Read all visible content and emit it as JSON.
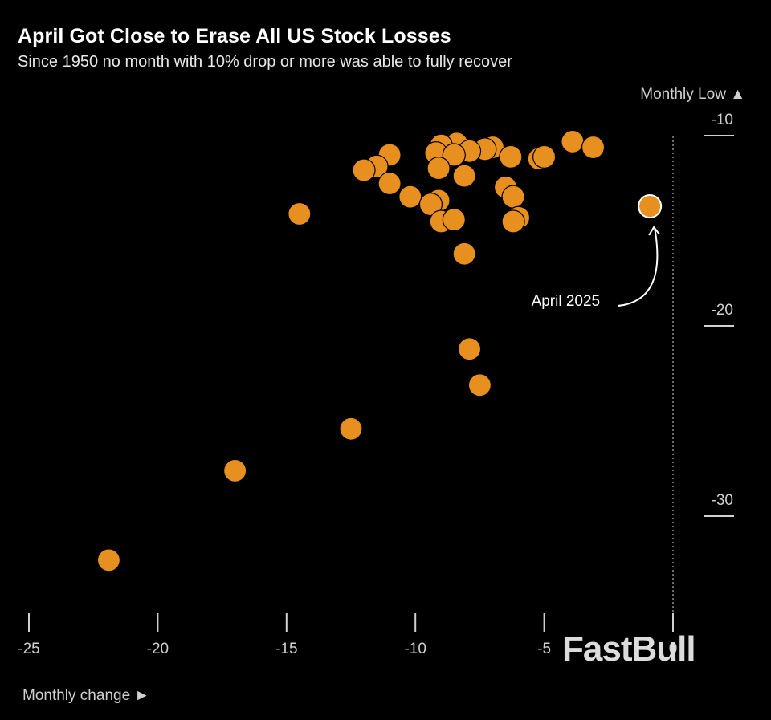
{
  "title": "April Got Close to Erase All US Stock Losses",
  "subtitle": "Since 1950 no month with 10% drop or more was able to fully recover",
  "watermark": "FastBull",
  "colors": {
    "background": "#000000",
    "dot": "#E8901F",
    "highlight_stroke": "#FFFFFF",
    "text": "#FFFFFF"
  },
  "chart_data": {
    "type": "scatter",
    "title": "April Got Close to Erase All US Stock Losses",
    "subtitle": "Since 1950 no month with 10% drop or more was able to fully recover",
    "xlabel": "Monthly change ►",
    "ylabel": "Monthly Low ▲",
    "xlim": [
      -25,
      0
    ],
    "ylim": [
      -33,
      -10
    ],
    "xticks": [
      -25,
      -20,
      -15,
      -10,
      -5,
      0
    ],
    "xtick_labels": [
      "-25",
      "-20",
      "-15",
      "-10",
      "-5",
      "0"
    ],
    "yticks": [
      -10,
      -20,
      -30
    ],
    "ytick_labels": [
      "-10",
      "-20",
      "-30"
    ],
    "reference_line_x": 0,
    "points": [
      {
        "x": -3.9,
        "y": -11.2
      },
      {
        "x": -3.1,
        "y": -11.5
      },
      {
        "x": -8.4,
        "y": -11.3
      },
      {
        "x": -9.0,
        "y": -11.4
      },
      {
        "x": -7.0,
        "y": -11.5
      },
      {
        "x": -7.3,
        "y": -11.6
      },
      {
        "x": -9.2,
        "y": -11.8
      },
      {
        "x": -7.9,
        "y": -11.7
      },
      {
        "x": -8.5,
        "y": -11.9
      },
      {
        "x": -11.0,
        "y": -11.9
      },
      {
        "x": -6.3,
        "y": -12.0
      },
      {
        "x": -5.2,
        "y": -12.1
      },
      {
        "x": -5.0,
        "y": -12.0
      },
      {
        "x": -11.5,
        "y": -12.5
      },
      {
        "x": -12.0,
        "y": -12.7
      },
      {
        "x": -9.1,
        "y": -12.6
      },
      {
        "x": -8.1,
        "y": -13.0
      },
      {
        "x": -11.0,
        "y": -13.4
      },
      {
        "x": -6.5,
        "y": -13.6
      },
      {
        "x": -6.2,
        "y": -14.1
      },
      {
        "x": -10.2,
        "y": -14.1
      },
      {
        "x": -9.1,
        "y": -14.3
      },
      {
        "x": -9.4,
        "y": -14.5
      },
      {
        "x": -14.5,
        "y": -15.0
      },
      {
        "x": -6.0,
        "y": -15.2
      },
      {
        "x": -6.2,
        "y": -15.4
      },
      {
        "x": -9.0,
        "y": -15.4
      },
      {
        "x": -8.5,
        "y": -15.3
      },
      {
        "x": -8.1,
        "y": -17.1
      },
      {
        "x": -7.9,
        "y": -22.1
      },
      {
        "x": -7.5,
        "y": -24.0
      },
      {
        "x": -12.5,
        "y": -26.3
      },
      {
        "x": -17.0,
        "y": -28.5
      },
      {
        "x": -21.9,
        "y": -33.2
      },
      {
        "x": -0.9,
        "y": -14.6,
        "label": "April 2025",
        "highlight": true
      }
    ]
  }
}
